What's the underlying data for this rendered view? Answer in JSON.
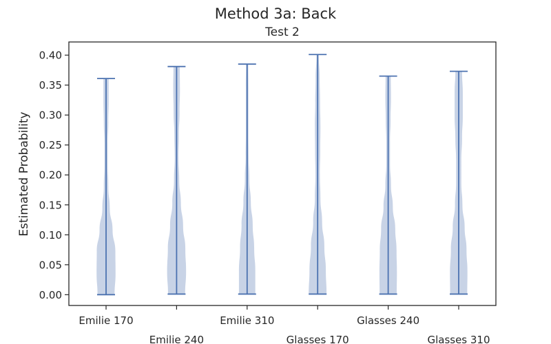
{
  "chart_data": {
    "type": "violin",
    "title": "Method 3a: Back",
    "subtitle": "Test 2",
    "xlabel": "",
    "ylabel": "Estimated Probability",
    "ylim": [
      -0.018,
      0.422
    ],
    "y_ticks": [
      "0.00",
      "0.05",
      "0.10",
      "0.15",
      "0.20",
      "0.25",
      "0.30",
      "0.35",
      "0.40"
    ],
    "grid": false,
    "categories": [
      "Emilie 170",
      "Emilie 240",
      "Emilie 310",
      "Glasses 170",
      "Glasses 240",
      "Glasses 310"
    ],
    "series": [
      {
        "min": 0.0,
        "max": 0.361,
        "widths": [
          0.46,
          0.51,
          0.5,
          0.35,
          0.2,
          0.12,
          0.09,
          0.09,
          0.12,
          0.14,
          0.14
        ]
      },
      {
        "min": 0.001,
        "max": 0.381,
        "widths": [
          0.46,
          0.51,
          0.47,
          0.35,
          0.23,
          0.14,
          0.1,
          0.12,
          0.16,
          0.18,
          0.17
        ]
      },
      {
        "min": 0.001,
        "max": 0.385,
        "widths": [
          0.44,
          0.44,
          0.38,
          0.3,
          0.2,
          0.12,
          0.08,
          0.07,
          0.07,
          0.07,
          0.06
        ]
      },
      {
        "min": 0.001,
        "max": 0.401,
        "widths": [
          0.48,
          0.44,
          0.36,
          0.24,
          0.15,
          0.12,
          0.14,
          0.15,
          0.13,
          0.11,
          0.06
        ]
      },
      {
        "min": 0.001,
        "max": 0.365,
        "widths": [
          0.46,
          0.47,
          0.45,
          0.38,
          0.25,
          0.15,
          0.1,
          0.1,
          0.13,
          0.15,
          0.14
        ]
      },
      {
        "min": 0.001,
        "max": 0.373,
        "widths": [
          0.46,
          0.47,
          0.42,
          0.32,
          0.2,
          0.14,
          0.14,
          0.18,
          0.22,
          0.22,
          0.18
        ]
      }
    ],
    "colors": {
      "body": "#c8d3e6",
      "lines": "#4c72b0",
      "axis": "#262626"
    }
  }
}
